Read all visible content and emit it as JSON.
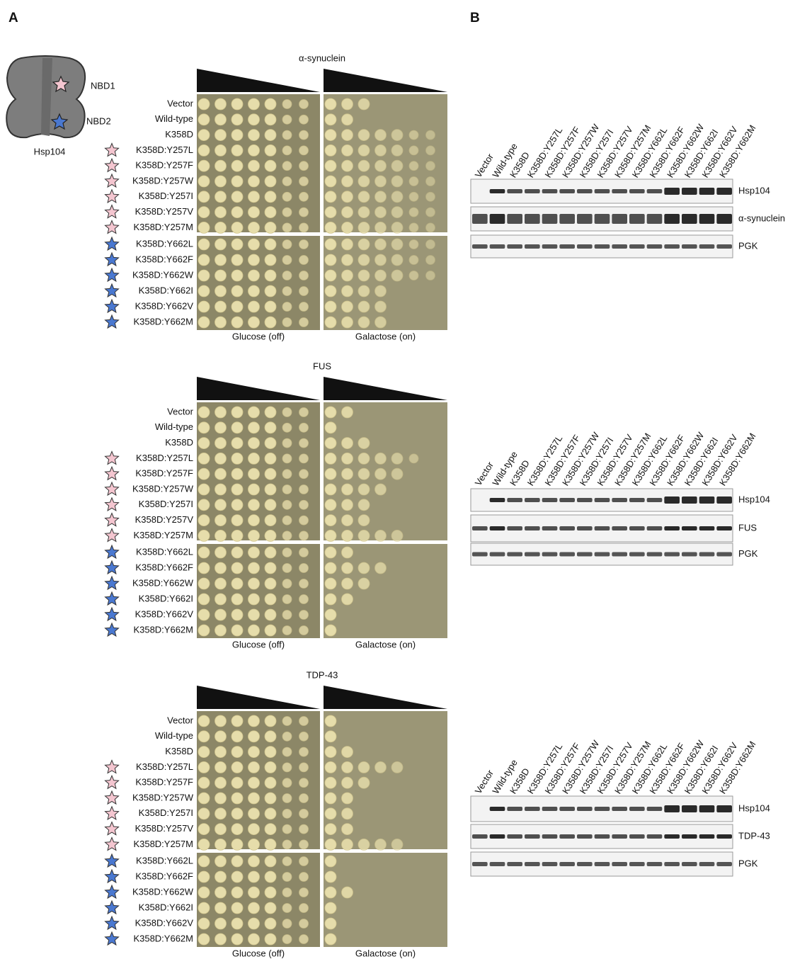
{
  "panel_labels": [
    "A",
    "B"
  ],
  "diagram": {
    "nbd1": "NBD1",
    "nbd2": "NBD2",
    "label": "Hsp104"
  },
  "sections": [
    {
      "title": "α-synuclein",
      "strains": [
        "Vector",
        "Wild-type",
        "K358D",
        "K358D:Y257L",
        "K358D:Y257F",
        "K358D:Y257W",
        "K358D:Y257I",
        "K358D:Y257V",
        "K358D:Y257M",
        "K358D:Y662L",
        "K358D:Y662F",
        "K358D:Y662W",
        "K358D:Y662I",
        "K358D:Y662V",
        "K358D:Y662M"
      ],
      "plates": [
        "Glucose (off)",
        "Galactose (on)"
      ],
      "blot": {
        "lanes": [
          "Vector",
          "Wild-type",
          "K358D",
          "K358D:Y257L",
          "K358D:Y257F",
          "K358D:Y257W",
          "K358D:Y257I",
          "K358D:Y257V",
          "K358D:Y257M",
          "K358D:Y662L",
          "K358D:Y662F",
          "K358D:Y662W",
          "K358D:Y662I",
          "K358D:Y662V",
          "K358D:Y662M"
        ],
        "bands": [
          "Hsp104",
          "α-synuclein",
          "PGK"
        ]
      }
    },
    {
      "title": "FUS",
      "strains": [
        "Vector",
        "Wild-type",
        "K358D",
        "K358D:Y257L",
        "K358D:Y257F",
        "K358D:Y257W",
        "K358D:Y257I",
        "K358D:Y257V",
        "K358D:Y257M",
        "K358D:Y662L",
        "K358D:Y662F",
        "K358D:Y662W",
        "K358D:Y662I",
        "K358D:Y662V",
        "K358D:Y662M"
      ],
      "plates": [
        "Glucose (off)",
        "Galactose (on)"
      ],
      "blot": {
        "lanes": [
          "Vector",
          "Wild-type",
          "K358D",
          "K358D:Y257L",
          "K358D:Y257F",
          "K358D:Y257W",
          "K358D:Y257I",
          "K358D:Y257V",
          "K358D:Y257M",
          "K358D:Y662L",
          "K358D:Y662F",
          "K358D:Y662W",
          "K358D:Y662I",
          "K358D:Y662V",
          "K358D:Y662M"
        ],
        "bands": [
          "Hsp104",
          "FUS",
          "PGK"
        ]
      }
    },
    {
      "title": "TDP-43",
      "strains": [
        "Vector",
        "Wild-type",
        "K358D",
        "K358D:Y257L",
        "K358D:Y257F",
        "K358D:Y257W",
        "K358D:Y257I",
        "K358D:Y257V",
        "K358D:Y257M",
        "K358D:Y662L",
        "K358D:Y662F",
        "K358D:Y662W",
        "K358D:Y662I",
        "K358D:Y662V",
        "K358D:Y662M"
      ],
      "plates": [
        "Glucose (off)",
        "Galactose (on)"
      ],
      "blot": {
        "lanes": [
          "Vector",
          "Wild-type",
          "K358D",
          "K358D:Y257L",
          "K358D:Y257F",
          "K358D:Y257W",
          "K358D:Y257I",
          "K358D:Y257V",
          "K358D:Y257M",
          "K358D:Y662L",
          "K358D:Y662F",
          "K358D:Y662W",
          "K358D:Y662I",
          "K358D:Y662V",
          "K358D:Y662M"
        ],
        "bands": [
          "Hsp104",
          "TDP-43",
          "PGK"
        ]
      }
    }
  ]
}
